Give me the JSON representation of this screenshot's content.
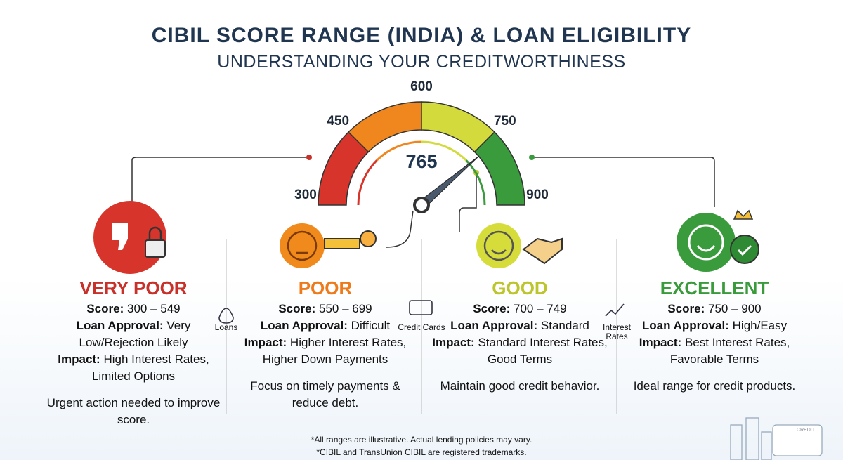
{
  "header": {
    "title": "CIBIL SCORE RANGE (INDIA) & LOAN ELIGIBILITY",
    "subtitle": "UNDERSTANDING YOUR CREDITWORTHINESS"
  },
  "gauge": {
    "ticks": [
      300,
      450,
      600,
      750,
      900
    ],
    "value": 765,
    "segment_colors": [
      "#d7342c",
      "#f0861e",
      "#d3da3c",
      "#3a9b3c"
    ]
  },
  "categories": [
    {
      "name": "VERY POOR",
      "color": "#c8302a",
      "details": [
        {
          "label": "Score:",
          "text": "300 – 549"
        },
        {
          "label": "Loan Approval:",
          "text": "Very Low/Rejection Likely"
        },
        {
          "label": "Impact:",
          "text": "High Interest Rates, Limited Options"
        }
      ],
      "note": "Urgent action needed to improve score."
    },
    {
      "name": "POOR",
      "color": "#ee7b1b",
      "details": [
        {
          "label": "Score:",
          "text": "550 – 699"
        },
        {
          "label": "Loan Approval:",
          "text": "Difficult"
        },
        {
          "label": "Impact:",
          "text": "Higher Interest Rates, Higher Down Payments"
        }
      ],
      "note": "Focus on timely payments & reduce debt."
    },
    {
      "name": "GOOD",
      "color": "#bcc52b",
      "details": [
        {
          "label": "Score:",
          "text": "700 – 749"
        },
        {
          "label": "Loan Approval:",
          "text": "Standard"
        },
        {
          "label": "Impact:",
          "text": "Standard Interest Rates, Good Terms"
        }
      ],
      "note": "Maintain good credit behavior."
    },
    {
      "name": "EXCELLENT",
      "color": "#3a9b3c",
      "details": [
        {
          "label": "Score:",
          "text": "750 – 900"
        },
        {
          "label": "Loan Approval:",
          "text": "High/Easy"
        },
        {
          "label": "Impact:",
          "text": "Best Interest Rates, Favorable Terms"
        }
      ],
      "note": "Ideal range for credit products."
    }
  ],
  "side_labels": [
    "Loans",
    "Credit Cards",
    "Interest Rates"
  ],
  "footnotes": [
    "*All ranges are illustrative. Actual lending policies may vary.",
    "*CIBIL and TransUnion CIBIL are registered trademarks."
  ],
  "card_label": "CREDIT"
}
